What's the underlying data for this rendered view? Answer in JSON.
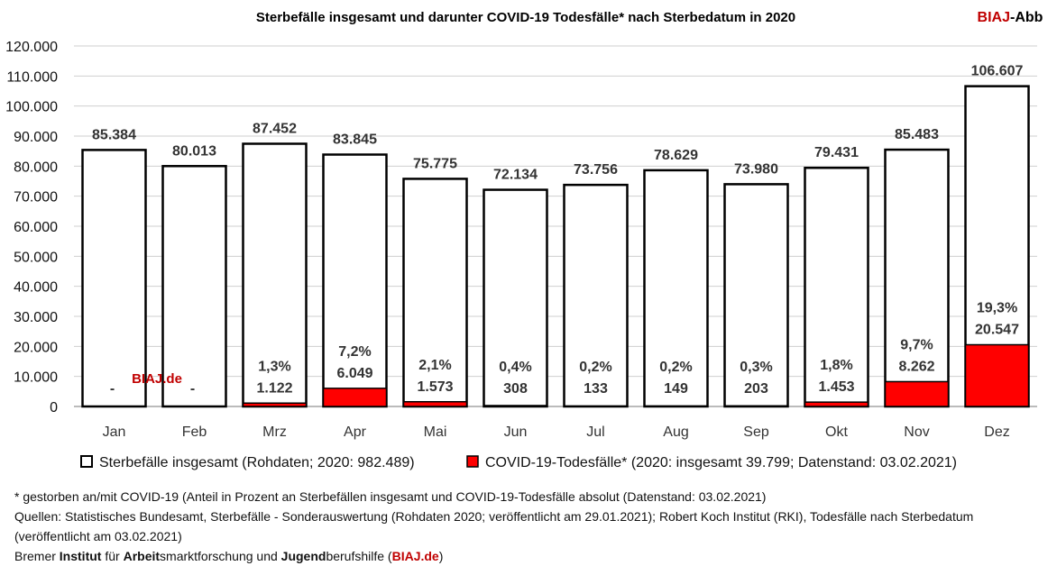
{
  "chart_data": {
    "type": "bar",
    "title": "Sterbefälle insgesamt und darunter COVID-19 Todesfälle* nach Sterbedatum in 2020",
    "brand_prefix": "BIAJ",
    "brand_suffix": "-Abb",
    "watermark": "BIAJ.de",
    "categories": [
      "Jan",
      "Feb",
      "Mrz",
      "Apr",
      "Mai",
      "Jun",
      "Jul",
      "Aug",
      "Sep",
      "Okt",
      "Nov",
      "Dez"
    ],
    "ylim": [
      0,
      120000
    ],
    "ytick_labels": [
      "0",
      "10.000",
      "20.000",
      "30.000",
      "40.000",
      "50.000",
      "60.000",
      "70.000",
      "80.000",
      "90.000",
      "100.000",
      "110.000",
      "120.000"
    ],
    "series": [
      {
        "name": "Sterbefälle insgesamt (Rohdaten; 2020: 982.489)",
        "color": "#ffffff",
        "values": [
          85384,
          80013,
          87452,
          83845,
          75775,
          72134,
          73756,
          78629,
          73980,
          79431,
          85483,
          106607
        ],
        "labels": [
          "85.384",
          "80.013",
          "87.452",
          "83.845",
          "75.775",
          "72.134",
          "73.756",
          "78.629",
          "73.980",
          "79.431",
          "85.483",
          "106.607"
        ]
      },
      {
        "name": "COVID-19-Todesfälle* (2020: insgesamt 39.799; Datenstand: 03.02.2021)",
        "color": "#ff0000",
        "values": [
          0,
          0,
          1122,
          6049,
          1573,
          308,
          133,
          149,
          203,
          1453,
          8262,
          20547
        ],
        "labels": [
          "-",
          "-",
          "1.122",
          "6.049",
          "1.573",
          "308",
          "133",
          "149",
          "203",
          "1.453",
          "8.262",
          "20.547"
        ],
        "percent_labels": [
          "",
          "",
          "1,3%",
          "7,2%",
          "2,1%",
          "0,4%",
          "0,2%",
          "0,2%",
          "0,3%",
          "1,8%",
          "9,7%",
          "19,3%"
        ]
      }
    ],
    "grid": true,
    "legend_position": "bottom"
  },
  "notes": {
    "footnote": "* gestorben an/mit COVID-19 (Anteil in Prozent an Sterbefällen insgesamt und COVID-19-Todesfälle absolut (Datenstand: 03.02.2021)",
    "sources": "Quellen: Statistisches Bundesamt, Sterbefälle - Sonderauswertung (Rohdaten 2020; veröffentlicht am 29.01.2021); Robert Koch Institut (RKI), Todesfälle nach Sterbedatum (veröffentlicht am 03.02.2021)",
    "org": {
      "p1": "Bremer ",
      "b1": "Institut",
      "p2": " für ",
      "b2": "Arbeit",
      "p3": "smarktforschung und ",
      "b3": "Jugend",
      "p4": "berufshilfe (",
      "link": "BIAJ.de",
      "p5": ")"
    }
  }
}
